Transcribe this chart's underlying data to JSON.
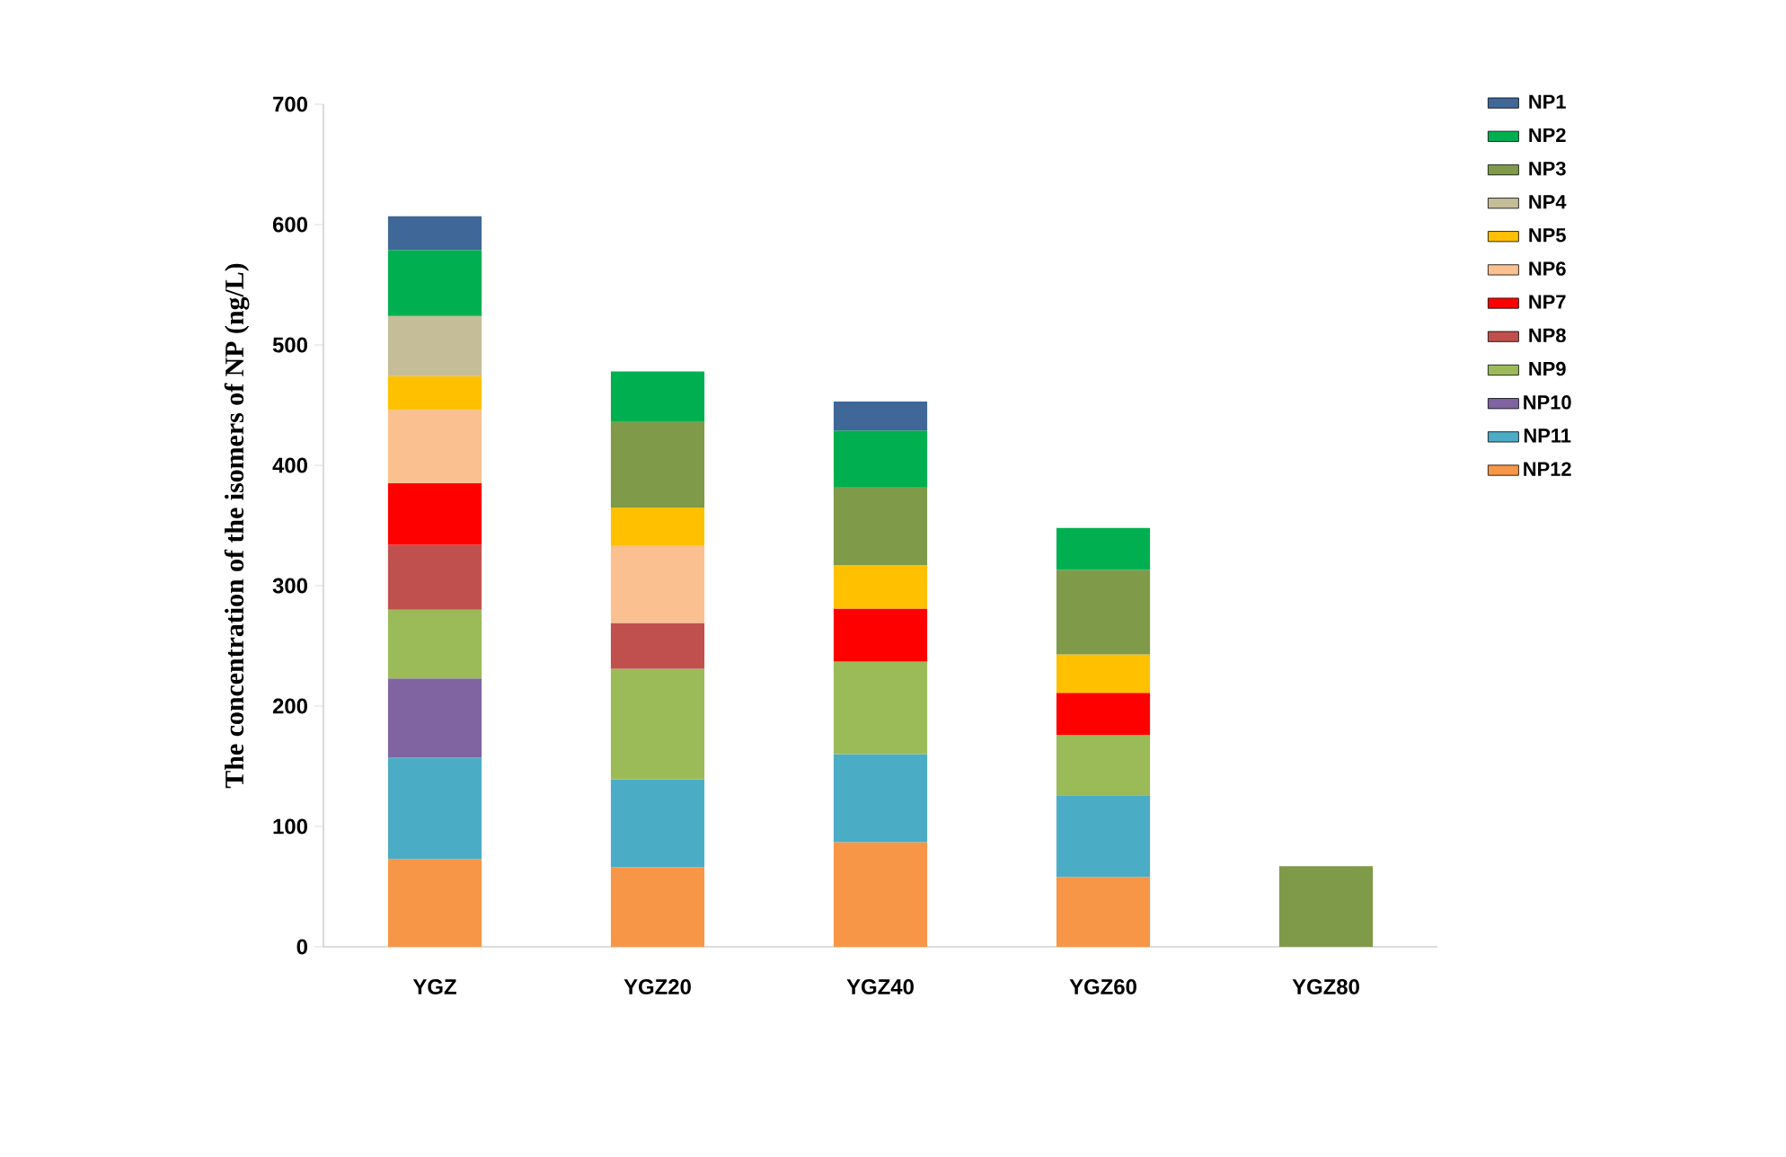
{
  "chart_data": {
    "type": "bar",
    "stacked": true,
    "ylabel": "The concentration of the isomers of NP (ng/L)",
    "categories": [
      "YGZ",
      "YGZ20",
      "YGZ40",
      "YGZ60",
      "YGZ80"
    ],
    "ylim": [
      0,
      700
    ],
    "yticks": [
      0,
      100,
      200,
      300,
      400,
      500,
      600,
      700
    ],
    "grid": false,
    "legend": "right",
    "series": [
      {
        "name": "NP12",
        "color": "#f79646",
        "values": [
          73,
          66,
          87,
          58,
          null
        ]
      },
      {
        "name": "NP11",
        "color": "#4bacc6",
        "values": [
          84,
          73,
          73,
          68,
          null
        ]
      },
      {
        "name": "NP10",
        "color": "#8064a2",
        "values": [
          66,
          null,
          null,
          null,
          null
        ]
      },
      {
        "name": "NP9",
        "color": "#9bbb59",
        "values": [
          57,
          92,
          77,
          50,
          null
        ]
      },
      {
        "name": "NP8",
        "color": "#c0504d",
        "values": [
          54,
          38,
          null,
          null,
          null
        ]
      },
      {
        "name": "NP7",
        "color": "#ff0000",
        "values": [
          51,
          null,
          44,
          35,
          null
        ]
      },
      {
        "name": "NP6",
        "color": "#fac090",
        "values": [
          61,
          64,
          null,
          null,
          null
        ]
      },
      {
        "name": "NP5",
        "color": "#ffc000",
        "values": [
          28,
          32,
          36,
          32,
          null
        ]
      },
      {
        "name": "NP4",
        "color": "#c4bd97",
        "values": [
          50,
          null,
          null,
          null,
          null
        ]
      },
      {
        "name": "NP3",
        "color": "#7f9a48",
        "values": [
          null,
          71,
          65,
          70,
          67
        ]
      },
      {
        "name": "NP2",
        "color": "#00b050",
        "values": [
          55,
          42,
          47,
          35,
          null
        ]
      },
      {
        "name": "NP1",
        "color": "#3f6797",
        "values": [
          28,
          null,
          24,
          null,
          null
        ]
      }
    ]
  }
}
